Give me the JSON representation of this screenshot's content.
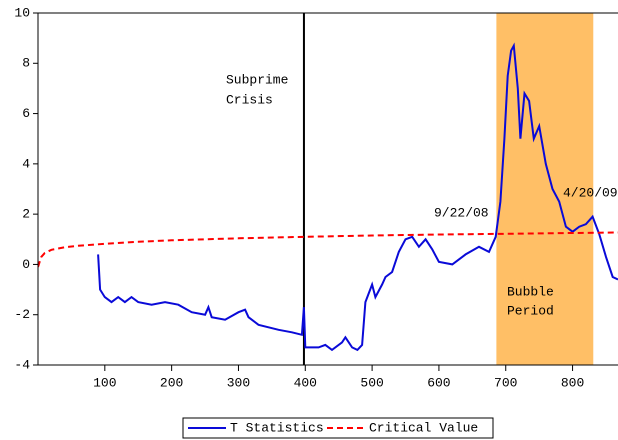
{
  "chart_data": {
    "type": "line",
    "x": [
      90,
      93,
      100,
      110,
      120,
      130,
      140,
      150,
      170,
      190,
      210,
      230,
      250,
      255,
      260,
      280,
      300,
      310,
      315,
      330,
      360,
      380,
      395,
      398,
      400,
      420,
      430,
      440,
      455,
      460,
      470,
      478,
      485,
      490,
      500,
      505,
      515,
      520,
      530,
      540,
      550,
      560,
      570,
      580,
      590,
      600,
      620,
      640,
      660,
      675,
      685,
      692,
      698,
      703,
      708,
      712,
      718,
      722,
      728,
      735,
      742,
      750,
      760,
      770,
      780,
      790,
      800,
      810,
      820,
      830,
      840,
      850,
      860,
      868
    ],
    "series": [
      {
        "name": "T Statistics",
        "color": "#0a0ad8",
        "style": "solid",
        "values": [
          0.4,
          -1.0,
          -1.3,
          -1.5,
          -1.3,
          -1.5,
          -1.3,
          -1.5,
          -1.6,
          -1.5,
          -1.6,
          -1.9,
          -2.0,
          -1.7,
          -2.1,
          -2.2,
          -1.9,
          -1.8,
          -2.1,
          -2.4,
          -2.6,
          -2.7,
          -2.8,
          -1.7,
          -3.3,
          -3.3,
          -3.2,
          -3.4,
          -3.1,
          -2.9,
          -3.3,
          -3.4,
          -3.2,
          -1.5,
          -0.8,
          -1.3,
          -0.8,
          -0.5,
          -0.3,
          0.5,
          1.0,
          1.1,
          0.7,
          1.0,
          0.6,
          0.1,
          0.0,
          0.4,
          0.7,
          0.5,
          1.1,
          2.5,
          5.0,
          7.5,
          8.5,
          8.7,
          7.0,
          5.0,
          6.8,
          6.5,
          5.0,
          5.5,
          4.0,
          3.0,
          2.5,
          1.5,
          1.3,
          1.5,
          1.6,
          1.9,
          1.2,
          0.3,
          -0.5,
          -0.6
        ]
      },
      {
        "name": "Critical Value",
        "color": "#ff0000",
        "style": "dashed",
        "x": [
          0,
          5,
          10,
          20,
          40,
          60,
          100,
          150,
          200,
          300,
          400,
          500,
          600,
          700,
          800,
          868
        ],
        "values": [
          -0.1,
          0.3,
          0.45,
          0.58,
          0.68,
          0.74,
          0.82,
          0.9,
          0.96,
          1.04,
          1.1,
          1.15,
          1.19,
          1.22,
          1.25,
          1.27
        ]
      }
    ],
    "xlim": [
      0,
      868
    ],
    "ylim": [
      -4,
      10
    ],
    "xticks": [
      100,
      200,
      300,
      400,
      500,
      600,
      700,
      800
    ],
    "yticks": [
      -4,
      -2,
      0,
      2,
      4,
      6,
      8,
      10
    ],
    "shaded_region": [
      686,
      831
    ],
    "shade_color": "#ffbf66",
    "vertical_line": 398,
    "annotations": [
      "Subprime",
      "Crisis",
      "9/22/08",
      "4/20/09",
      "Bubble",
      "Period"
    ]
  }
}
